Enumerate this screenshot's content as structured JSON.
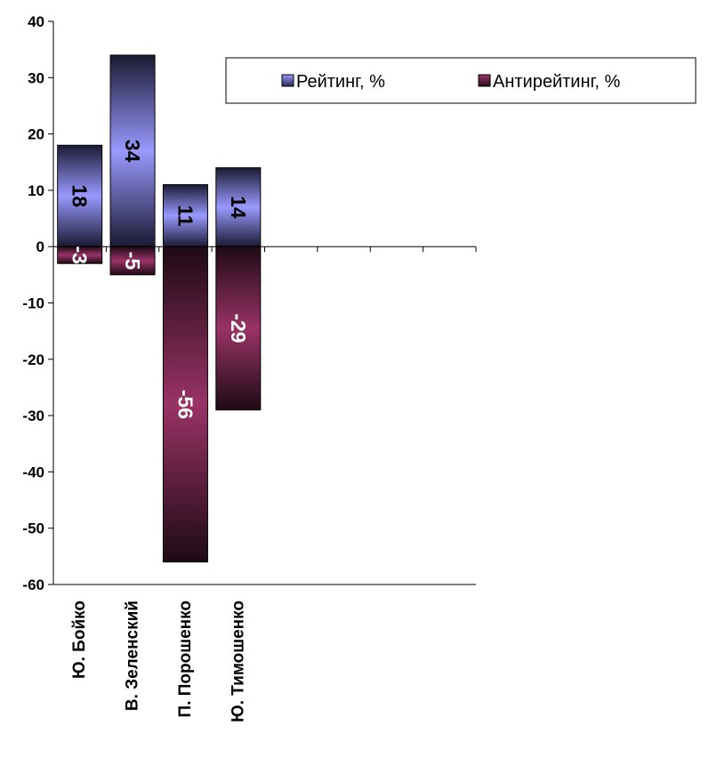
{
  "chart_data": {
    "type": "bar",
    "stacked_diverging": true,
    "categories": [
      "Ю. Бойко",
      "В. Зеленский",
      "П. Порошенко",
      "Ю. Тимошенко"
    ],
    "series": [
      {
        "name": "Рейтинг, %",
        "values": [
          18,
          34,
          11,
          14
        ],
        "color": "#9999ff"
      },
      {
        "name": "Антирейтинг, %",
        "values": [
          -3,
          -5,
          -56,
          -29
        ],
        "color": "#993366"
      }
    ],
    "data_labels": {
      "Рейтинг, %": [
        "18",
        "34",
        "11",
        "14"
      ],
      "Антирейтинг, %": [
        "-3",
        "-5",
        "-56",
        "-29"
      ]
    },
    "ylim": [
      -60,
      40
    ],
    "yticks": [
      40,
      30,
      20,
      10,
      0,
      -10,
      -20,
      -30,
      -40,
      -50,
      -60
    ],
    "category_slots": 8,
    "legend_position": "top-right",
    "grid": false,
    "title": "",
    "xlabel": "",
    "ylabel": ""
  }
}
